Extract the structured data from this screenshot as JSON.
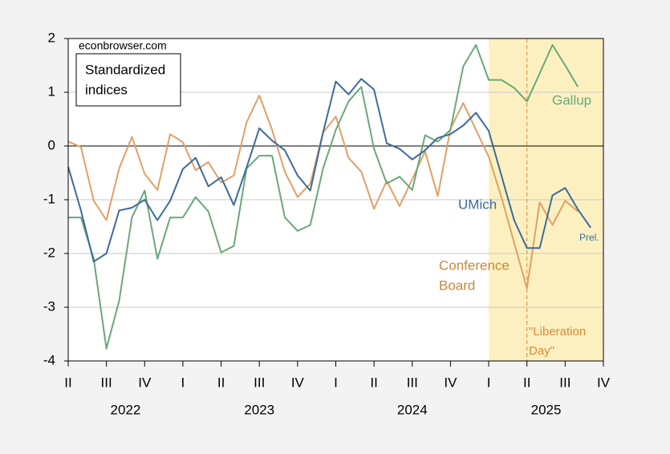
{
  "chart_data": {
    "type": "line",
    "source": "econbrowser.com",
    "title_lines": [
      "Standardized",
      "indices"
    ],
    "x": [
      2022.25,
      2022.3333,
      2022.4167,
      2022.5,
      2022.5833,
      2022.6667,
      2022.75,
      2022.8333,
      2022.9167,
      2023,
      2023.0833,
      2023.1667,
      2023.25,
      2023.3333,
      2023.4167,
      2023.5,
      2023.5833,
      2023.6667,
      2023.75,
      2023.8333,
      2023.9167,
      2024,
      2024.0833,
      2024.1667,
      2024.25,
      2024.3333,
      2024.4167,
      2024.5,
      2024.5833,
      2024.6667,
      2024.75,
      2024.8333,
      2024.9167,
      2025,
      2025.0833,
      2025.1667,
      2025.25,
      2025.3333,
      2025.4167,
      2025.5,
      2025.5833,
      2025.6667
    ],
    "series": [
      {
        "name": "UMich",
        "color": "#3d6b9b",
        "values": [
          -0.39,
          -1.2,
          -2.15,
          -2.0,
          -1.2,
          -1.15,
          -1.0,
          -1.38,
          -1.02,
          -0.43,
          -0.22,
          -0.75,
          -0.58,
          -1.1,
          -0.4,
          0.33,
          0.1,
          -0.08,
          -0.55,
          -0.83,
          0.25,
          1.2,
          0.96,
          1.25,
          1.05,
          0.05,
          -0.05,
          -0.25,
          -0.08,
          0.15,
          0.22,
          0.38,
          0.62,
          0.28,
          -0.55,
          -1.38,
          -1.9,
          -1.9,
          -0.92,
          -0.78,
          -1.18,
          -1.52
        ]
      },
      {
        "name": "Conference Board",
        "color": "#e0a066",
        "values": [
          0.08,
          -0.02,
          -1.02,
          -1.38,
          -0.42,
          0.17,
          -0.52,
          -0.82,
          0.22,
          0.07,
          -0.45,
          -0.3,
          -0.68,
          -0.55,
          0.44,
          0.94,
          0.3,
          -0.48,
          -0.95,
          -0.7,
          0.25,
          0.55,
          -0.22,
          -0.48,
          -1.17,
          -0.65,
          -1.12,
          -0.62,
          -0.1,
          -0.93,
          0.32,
          0.8,
          0.3,
          -0.2,
          -0.95,
          -1.8,
          -2.65,
          -1.05,
          -1.47,
          -1.02,
          -1.22,
          null
        ]
      },
      {
        "name": "Gallup",
        "color": "#6aa87a",
        "values": [
          -1.33,
          -1.33,
          -2.1,
          -3.77,
          -2.88,
          -1.33,
          -0.83,
          -2.1,
          -1.33,
          -1.33,
          -0.95,
          -1.22,
          -1.98,
          -1.86,
          -0.42,
          -0.18,
          -0.18,
          -1.33,
          -1.58,
          -1.47,
          -0.42,
          0.3,
          0.83,
          1.1,
          -0.05,
          -0.7,
          -0.57,
          -0.82,
          0.2,
          0.08,
          0.3,
          1.48,
          1.88,
          1.23,
          1.23,
          1.08,
          0.83,
          1.35,
          1.88,
          1.5,
          1.1,
          null
        ]
      }
    ],
    "labels": {
      "umich": [
        "UMich"
      ],
      "prel": [
        "Prel."
      ],
      "conference": [
        "Conference",
        "Board"
      ],
      "gallup": [
        "Gallup"
      ],
      "liberation": [
        "\"Liberation",
        "Day\""
      ]
    },
    "xlim": [
      2022.25,
      2025.75
    ],
    "xticks": [
      {
        "value": 2022.25,
        "label": "II"
      },
      {
        "value": 2022.5,
        "label": "III"
      },
      {
        "value": 2022.75,
        "label": "IV"
      },
      {
        "value": 2023,
        "label": "I"
      },
      {
        "value": 2023.25,
        "label": "II"
      },
      {
        "value": 2023.5,
        "label": "III"
      },
      {
        "value": 2023.75,
        "label": "IV"
      },
      {
        "value": 2024,
        "label": "I"
      },
      {
        "value": 2024.25,
        "label": "II"
      },
      {
        "value": 2024.5,
        "label": "III"
      },
      {
        "value": 2024.75,
        "label": "IV"
      },
      {
        "value": 2025,
        "label": "I"
      },
      {
        "value": 2025.25,
        "label": "II"
      },
      {
        "value": 2025.5,
        "label": "III"
      },
      {
        "value": 2025.75,
        "label": "IV"
      }
    ],
    "years": [
      2022,
      2023,
      2024,
      2025
    ],
    "ylim": [
      -4,
      2
    ],
    "yticks": [
      -4,
      -3,
      -2,
      -1,
      0,
      1,
      2
    ],
    "grid": true,
    "shade": [
      2025,
      2025.75
    ],
    "shade_color": "#fdf0c0",
    "event_x": 2025.25,
    "event_color": "#e08a30"
  }
}
